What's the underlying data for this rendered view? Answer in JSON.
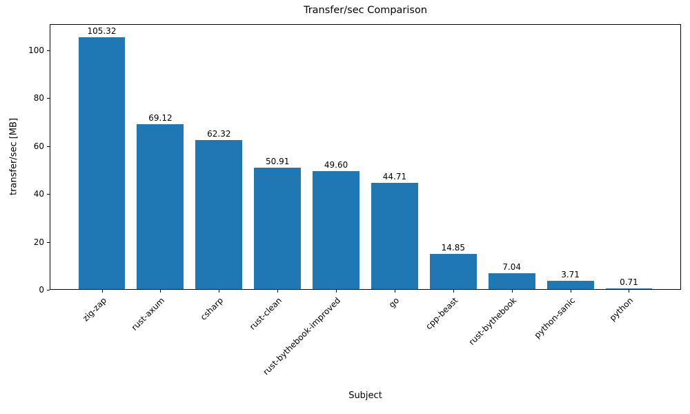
{
  "chart_data": {
    "type": "bar",
    "title": "Transfer/sec Comparison",
    "xlabel": "Subject",
    "ylabel": "transfer/sec [MB]",
    "categories": [
      "zig-zap",
      "rust-axum",
      "csharp",
      "rust-clean",
      "rust-bythebook-improved",
      "go",
      "cpp-beast",
      "rust-bythebook",
      "python-sanic",
      "python"
    ],
    "values": [
      105.32,
      69.12,
      62.32,
      50.91,
      49.6,
      44.71,
      14.85,
      7.04,
      3.71,
      0.71
    ],
    "value_labels": [
      "105.32",
      "69.12",
      "62.32",
      "50.91",
      "49.60",
      "44.71",
      "14.85",
      "7.04",
      "3.71",
      "0.71"
    ],
    "yticks": [
      0,
      20,
      40,
      60,
      80,
      100
    ],
    "ylim": [
      0,
      110.8
    ],
    "xlim": [
      -0.89,
      9.89
    ],
    "bar_width": 0.8,
    "bar_color": "#1f77b4",
    "text_color": "#000000",
    "grid": false,
    "legend": null,
    "x_tick_rotation_deg": 45
  }
}
